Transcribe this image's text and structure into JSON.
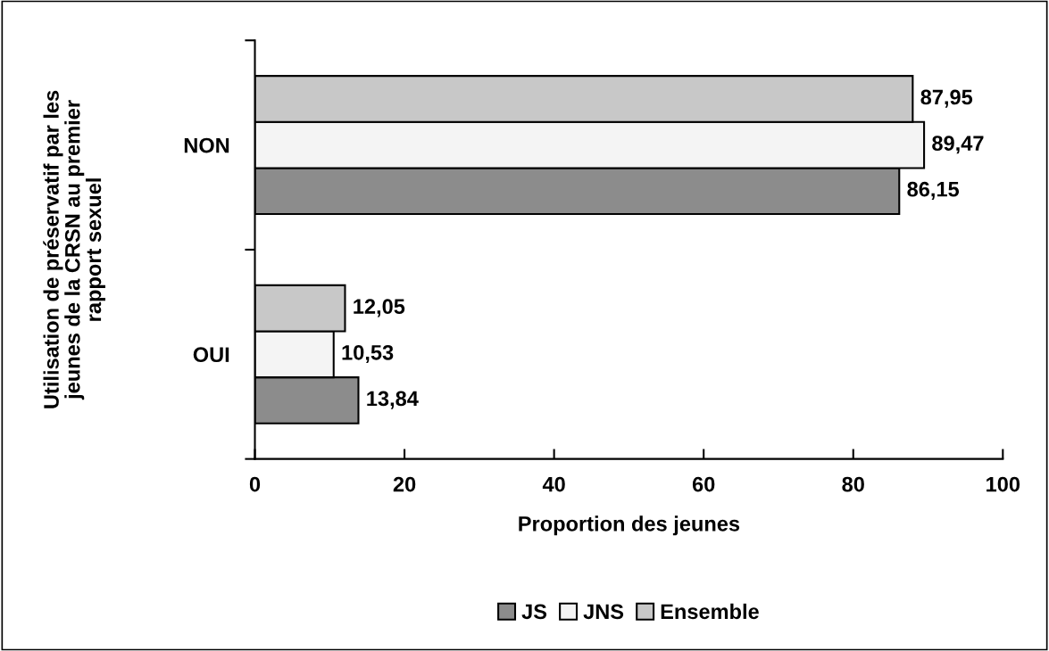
{
  "chart_data": {
    "type": "bar",
    "orientation": "horizontal",
    "ylabel": "Utilisation de préservatif par les\njeunes de la CRSN au premier\nrapport sexuel",
    "xlabel": "Proportion des jeunes",
    "categories": [
      "NON",
      "OUI"
    ],
    "series": [
      {
        "name": "JS",
        "color": "#8c8c8c",
        "values": [
          86.15,
          13.84
        ],
        "value_labels": [
          "86,15",
          "13,84"
        ]
      },
      {
        "name": "JNS",
        "color": "#f4f4f4",
        "values": [
          89.47,
          10.53
        ],
        "value_labels": [
          "89,47",
          "10,53"
        ]
      },
      {
        "name": "Ensemble",
        "color": "#c8c8c8",
        "values": [
          87.95,
          12.05
        ],
        "value_labels": [
          "87,95",
          "12,05"
        ]
      }
    ],
    "xlim": [
      0,
      100
    ],
    "xticks": [
      0,
      20,
      40,
      60,
      80,
      100
    ],
    "grid": false,
    "legend": "bottom"
  }
}
